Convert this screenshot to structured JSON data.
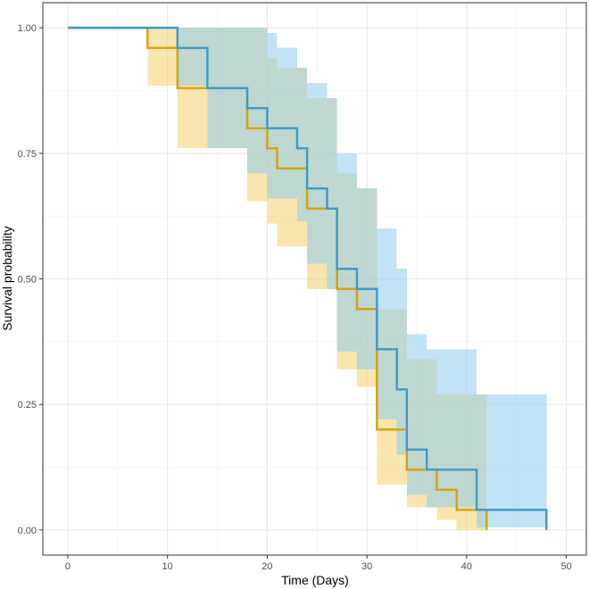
{
  "chart_data": {
    "type": "line",
    "subtype": "kaplan-meier step curves with confidence bands",
    "title": "",
    "xlabel": "Time (Days)",
    "ylabel": "Survival probability",
    "xlim": [
      -2.5,
      52
    ],
    "ylim": [
      -0.05,
      1.05
    ],
    "xticks": [
      0,
      10,
      20,
      30,
      40,
      50
    ],
    "yticks": [
      0.0,
      0.25,
      0.5,
      0.75,
      1.0
    ],
    "ytick_labels": [
      "0.00",
      "0.25",
      "0.50",
      "0.75",
      "1.00"
    ],
    "grid": true,
    "legend": "none",
    "series": [
      {
        "color": "#D4A20A",
        "band_color": "#F2D16B",
        "time": [
          0,
          8,
          11,
          18,
          20,
          21,
          24,
          26,
          27,
          29,
          31,
          34,
          36,
          37,
          39,
          42
        ],
        "survival": [
          1.0,
          0.96,
          0.88,
          0.8,
          0.76,
          0.72,
          0.64,
          0.64,
          0.48,
          0.44,
          0.2,
          0.12,
          0.12,
          0.08,
          0.04,
          0.0
        ],
        "lower": [
          1.0,
          0.885,
          0.76,
          0.655,
          0.61,
          0.565,
          0.48,
          0.48,
          0.32,
          0.285,
          0.09,
          0.045,
          0.045,
          0.02,
          0.0,
          0.0
        ],
        "upper": [
          1.0,
          1.0,
          1.0,
          1.0,
          0.94,
          0.92,
          0.86,
          0.86,
          0.71,
          0.68,
          0.44,
          0.34,
          0.34,
          0.27,
          0.27,
          0.27
        ]
      },
      {
        "color": "#3A9AC8",
        "band_color": "#8FCBEE",
        "time": [
          0,
          11,
          14,
          18,
          20,
          21,
          23,
          24,
          26,
          27,
          29,
          31,
          33,
          34,
          36,
          41,
          48
        ],
        "survival": [
          1.0,
          0.96,
          0.88,
          0.84,
          0.8,
          0.8,
          0.76,
          0.68,
          0.64,
          0.52,
          0.48,
          0.36,
          0.28,
          0.16,
          0.12,
          0.04,
          0.0
        ],
        "lower": [
          1.0,
          0.885,
          0.76,
          0.71,
          0.66,
          0.66,
          0.615,
          0.53,
          0.48,
          0.355,
          0.32,
          0.22,
          0.15,
          0.07,
          0.045,
          0.005,
          0.005
        ],
        "upper": [
          1.0,
          1.0,
          1.0,
          1.0,
          0.99,
          0.96,
          0.92,
          0.89,
          0.86,
          0.75,
          0.68,
          0.6,
          0.52,
          0.39,
          0.36,
          0.27,
          0.27
        ]
      }
    ]
  }
}
